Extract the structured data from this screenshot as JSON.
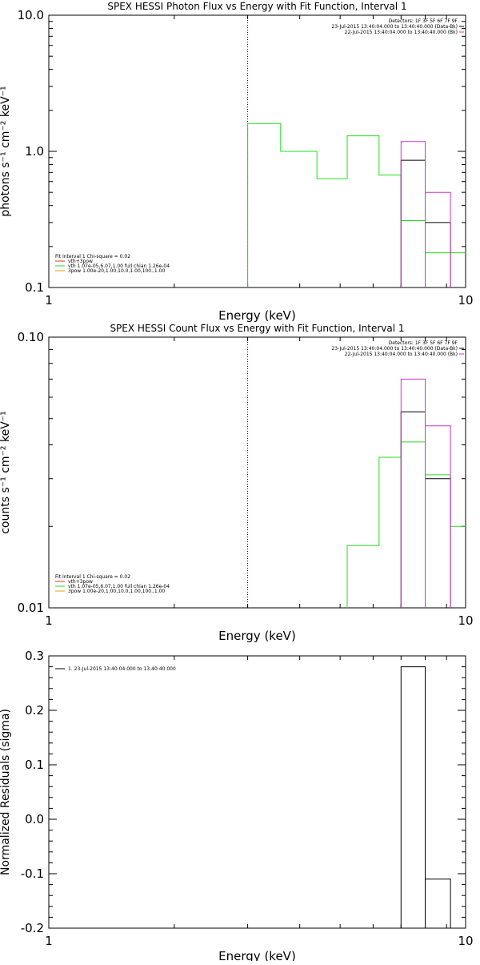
{
  "chart_data": [
    {
      "type": "line",
      "title": "SPEX HESSI Photon Flux vs Energy with Fit Function, Interval 1",
      "xlabel": "Energy (keV)",
      "ylabel": "photons s⁻¹ cm⁻² keV⁻¹",
      "xscale": "log",
      "yscale": "log",
      "xlim": [
        1,
        10
      ],
      "ylim": [
        0.1,
        10
      ],
      "xticks": [
        {
          "v": 1,
          "label": "1"
        },
        {
          "v": 10,
          "label": "10"
        }
      ],
      "yticks": [
        {
          "v": 0.1,
          "label": "0.1"
        },
        {
          "v": 1,
          "label": "1.0"
        },
        {
          "v": 10,
          "label": "10.0"
        }
      ],
      "fit_lines": [
        "Fit Interval 1    Chi-square = 0.02"
      ],
      "legend": [
        {
          "label": "vth+3pow",
          "color": "#e0302a"
        },
        {
          "label": "vth 1.07e-05,6.07,1.00  full chian 1.26e-04",
          "color": "#22dd22"
        },
        {
          "label": "3pow 1.00e-20,1.00,10.0,1.00,100.,1.00",
          "color": "#e0a000"
        }
      ],
      "detectors": [
        {
          "label": "Detectors: 1F 3F 5F 6F 7F 9F",
          "color": ""
        },
        {
          "label": "23-Jul-2015 13:40:04.000 to 13:40:40.000 (Data-Bk)",
          "color": "#000000"
        },
        {
          "label": "22-Jul-2015 13:40:04.000 to 13:40:40.000 (Bk)",
          "color": "#cc33cc"
        }
      ],
      "vline_x": 3,
      "series": [
        {
          "name": "vth 1.07e-05,6.07,1.00  full chian 1.26e-04",
          "color": "#22dd22",
          "style": "step",
          "edges": [
            3,
            3.6,
            4.4,
            5.2,
            6.2,
            7,
            8,
            9.2,
            10
          ],
          "values": [
            1.6,
            1.0,
            0.63,
            1.3,
            0.67,
            0.31,
            0.18,
            0.18
          ]
        },
        {
          "name": "Data-Bk",
          "color": "#000000",
          "style": "bar",
          "bins": [
            {
              "lo": 7,
              "hi": 8,
              "v": 0.86
            },
            {
              "lo": 8,
              "hi": 9.2,
              "v": 0.3
            }
          ]
        },
        {
          "name": "Bk",
          "color": "#cc33cc",
          "style": "bar",
          "bins": [
            {
              "lo": 7,
              "hi": 8,
              "v": 1.18
            },
            {
              "lo": 8,
              "hi": 9.2,
              "v": 0.5
            }
          ]
        }
      ]
    },
    {
      "type": "line",
      "title": "SPEX HESSI Count Flux vs Energy with Fit Function, Interval 1",
      "xlabel": "Energy (keV)",
      "ylabel": "counts s⁻¹ cm⁻² keV⁻¹",
      "xscale": "log",
      "yscale": "log",
      "xlim": [
        1,
        10
      ],
      "ylim": [
        0.01,
        0.1
      ],
      "xticks": [
        {
          "v": 1,
          "label": "1"
        },
        {
          "v": 10,
          "label": "10"
        }
      ],
      "yticks": [
        {
          "v": 0.01,
          "label": "0.01"
        },
        {
          "v": 0.1,
          "label": "0.10"
        }
      ],
      "fit_lines": [
        "Fit Interval 1    Chi-square = 0.02"
      ],
      "legend": [
        {
          "label": "vth+3pow",
          "color": "#e0302a"
        },
        {
          "label": "vth 1.07e-05,6.07,1.00  full chian 1.26e-04",
          "color": "#22dd22"
        },
        {
          "label": "3pow 1.00e-20,1.00,10.0,1.00,100.,1.00",
          "color": "#e0a000"
        }
      ],
      "detectors": [
        {
          "label": "Detectors: 1F 3F 5F 6F 7F 9F",
          "color": ""
        },
        {
          "label": "23-Jul-2015 13:40:04.000 to 13:40:40.000 (Data-Bk)",
          "color": "#000000"
        },
        {
          "label": "22-Jul-2015 13:40:04.000 to 13:40:40.000 (Bk)",
          "color": "#cc33cc"
        }
      ],
      "vline_x": 3,
      "series": [
        {
          "name": "vth 1.07e-05,6.07,1.00  full chian 1.26e-04",
          "color": "#22dd22",
          "style": "step",
          "edges": [
            5.2,
            6.2,
            7,
            8,
            9.2,
            10
          ],
          "values": [
            0.017,
            0.036,
            0.041,
            0.031,
            0.02
          ]
        },
        {
          "name": "Data-Bk",
          "color": "#000000",
          "style": "bar",
          "bins": [
            {
              "lo": 7,
              "hi": 8,
              "v": 0.053
            },
            {
              "lo": 8,
              "hi": 9.2,
              "v": 0.03
            }
          ]
        },
        {
          "name": "Bk",
          "color": "#cc33cc",
          "style": "bar",
          "bins": [
            {
              "lo": 7,
              "hi": 8,
              "v": 0.07
            },
            {
              "lo": 8,
              "hi": 9.2,
              "v": 0.047
            }
          ]
        }
      ]
    },
    {
      "type": "bar",
      "title": "",
      "xlabel": "Energy (keV)",
      "ylabel": "Normalized Residuals (sigma)",
      "xscale": "log",
      "yscale": "linear",
      "xlim": [
        1,
        10
      ],
      "ylim": [
        -0.2,
        0.3
      ],
      "xticks": [
        {
          "v": 1,
          "label": "1"
        },
        {
          "v": 10,
          "label": "10"
        }
      ],
      "yticks": [
        {
          "v": -0.2,
          "label": "-0.2"
        },
        {
          "v": -0.1,
          "label": "-0.1"
        },
        {
          "v": 0,
          "label": "0.0"
        },
        {
          "v": 0.1,
          "label": "0.1"
        },
        {
          "v": 0.2,
          "label": "0.2"
        },
        {
          "v": 0.3,
          "label": "0.3"
        }
      ],
      "fit_lines": [],
      "legend": [
        {
          "label": "1. 23-Jul-2015 13:40:04.000 to 13:40:40.000",
          "color": "#000000"
        }
      ],
      "detectors": [],
      "series": [
        {
          "name": "1. 23-Jul-2015 13:40:04.000 to 13:40:40.000",
          "color": "#000000",
          "style": "resid",
          "bins": [
            {
              "lo": 7,
              "hi": 8,
              "v": 0.28
            },
            {
              "lo": 8,
              "hi": 9.2,
              "v": -0.11
            }
          ]
        }
      ]
    }
  ]
}
